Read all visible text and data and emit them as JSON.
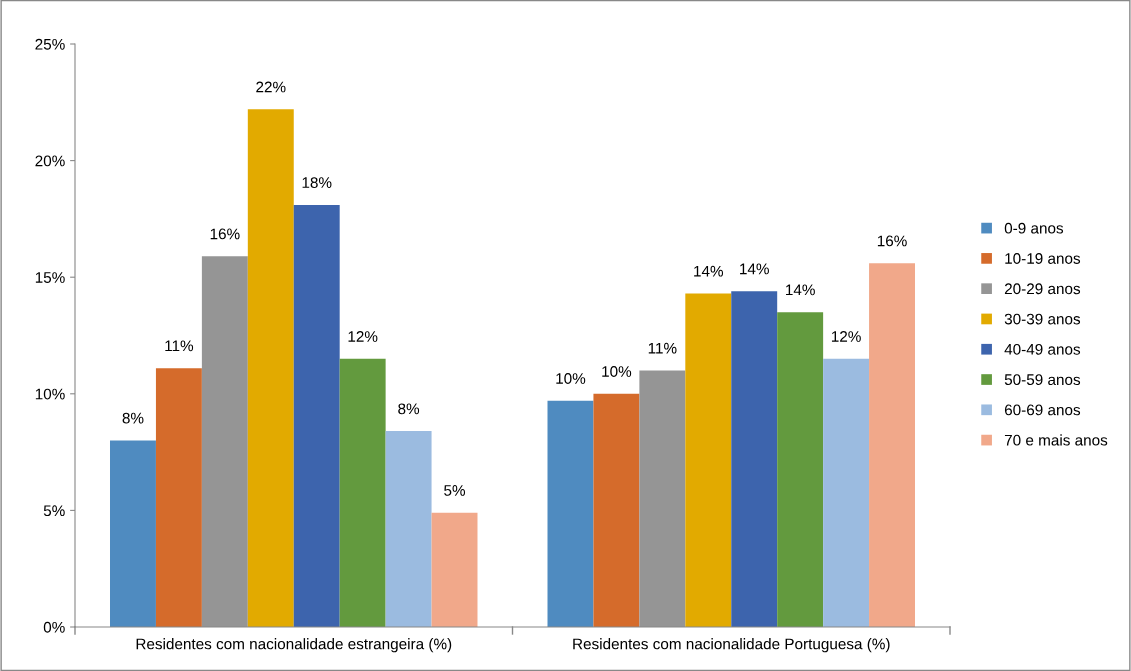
{
  "chart_data": {
    "type": "bar",
    "categories": [
      "Residentes com nacionalidade estrangeira (%)",
      "Residentes com nacionalidade Portuguesa (%)"
    ],
    "series": [
      {
        "name": "0-9 anos",
        "color": "#4f8bc0",
        "values": [
          8.0,
          9.7
        ],
        "value_labels": [
          "8%",
          "10%"
        ]
      },
      {
        "name": "10-19 anos",
        "color": "#d56b2b",
        "values": [
          11.1,
          10.0
        ],
        "value_labels": [
          "11%",
          "10%"
        ]
      },
      {
        "name": "20-29 anos",
        "color": "#959595",
        "values": [
          15.9,
          11.0
        ],
        "value_labels": [
          "16%",
          "11%"
        ]
      },
      {
        "name": "30-39 anos",
        "color": "#e2aa00",
        "values": [
          22.2,
          14.3
        ],
        "value_labels": [
          "22%",
          "14%"
        ]
      },
      {
        "name": "40-49 anos",
        "color": "#3d64ad",
        "values": [
          18.1,
          14.4
        ],
        "value_labels": [
          "18%",
          "14%"
        ]
      },
      {
        "name": "50-59 anos",
        "color": "#639a3e",
        "values": [
          11.5,
          13.5
        ],
        "value_labels": [
          "12%",
          "14%"
        ]
      },
      {
        "name": "60-69 anos",
        "color": "#9bbbe0",
        "values": [
          8.4,
          11.5
        ],
        "value_labels": [
          "8%",
          "12%"
        ]
      },
      {
        "name": "70 e mais anos",
        "color": "#f1a88a",
        "values": [
          4.9,
          15.6
        ],
        "value_labels": [
          "5%",
          "16%"
        ]
      }
    ],
    "ylim": [
      0,
      25
    ],
    "yticks": [
      {
        "value": 0,
        "label": "0%"
      },
      {
        "value": 5,
        "label": "5%"
      },
      {
        "value": 10,
        "label": "10%"
      },
      {
        "value": 15,
        "label": "15%"
      },
      {
        "value": 20,
        "label": "20%"
      },
      {
        "value": 25,
        "label": "25%"
      }
    ],
    "grid": false,
    "legend": "right"
  }
}
